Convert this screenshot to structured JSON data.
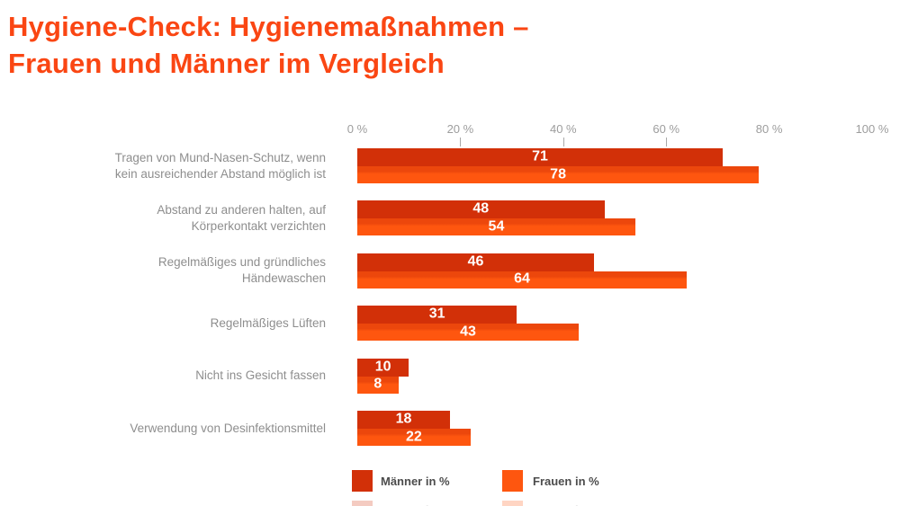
{
  "title": {
    "line1": "Hygiene-Check: Hygienemaßnahmen –",
    "line2": "Frauen und Männer im Vergleich"
  },
  "chart_data": {
    "type": "bar",
    "orientation": "horizontal",
    "title": "Hygiene-Check: Hygienemaßnahmen – Frauen und Männer im Vergleich",
    "categories": [
      [
        "Tragen von Mund-Nasen-Schutz, wenn",
        "kein ausreichender Abstand möglich ist"
      ],
      [
        "Abstand zu anderen halten, auf",
        "Körperkontakt verzichten"
      ],
      [
        "Regelmäßiges und gründliches",
        "Händewaschen"
      ],
      [
        "Regelmäßiges Lüften"
      ],
      [
        "Nicht ins Gesicht fassen"
      ],
      [
        "Verwendung von Desinfektionsmittel"
      ]
    ],
    "series": [
      {
        "name": "Männer in %",
        "color": "#d23008",
        "values": [
          71,
          48,
          46,
          31,
          10,
          18
        ]
      },
      {
        "name": "Frauen in %",
        "color": "#fe560f",
        "values": [
          78,
          54,
          64,
          43,
          8,
          22
        ]
      }
    ],
    "xlim": [
      0,
      100
    ],
    "tick_labels": [
      "0 %",
      "20 %",
      "40 %",
      "60 %",
      "80 %",
      "100 %"
    ],
    "ticks_with_marks": [
      "20 %",
      "40 %",
      "60 %"
    ],
    "grid": false,
    "legend_position": "bottom",
    "value_labels": "inside-center-white"
  },
  "legend": {
    "items": [
      {
        "label": "Männer in %",
        "color": "#d23008"
      },
      {
        "label": "Frauen in %",
        "color": "#fe560f"
      }
    ]
  },
  "colors": {
    "title": "#fa4613",
    "maenner": "#d23008",
    "frauen": "#fe560f",
    "frauen_dark": "#ec470c",
    "axis_gray": "#9d9d9d",
    "label_gray": "#8e8e8e",
    "tick_gray": "#a9a9a9"
  }
}
